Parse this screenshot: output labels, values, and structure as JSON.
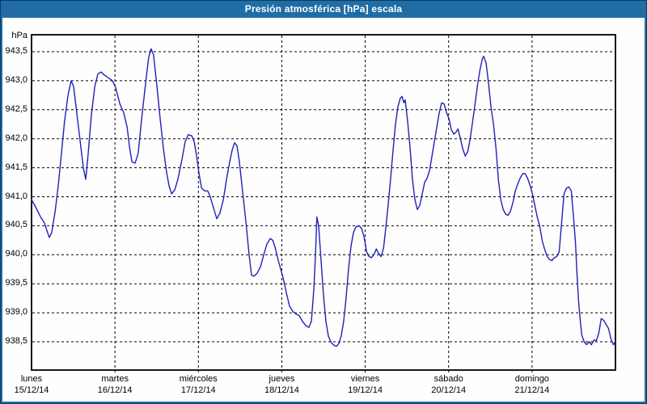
{
  "window": {
    "title": "Presión atmosférica [hPa] escala"
  },
  "colors": {
    "titlebar": "#1f6da4",
    "frame": "#1f6da4",
    "frame_edge": "#0c3b5e",
    "background": "#fdfefd",
    "plot_border": "#000000",
    "grid": "#000000",
    "line": "#2121b9"
  },
  "chart_data": {
    "type": "line",
    "title": "Presión atmosférica [hPa] escala",
    "ylabel": "hPa",
    "unit": "hPa",
    "grid": "dashed",
    "legend": "none",
    "ylim": [
      938.2,
      943.8
    ],
    "y_tick_labels": [
      "943,5",
      "943,0",
      "942,5",
      "942,0",
      "941,5",
      "941,0",
      "940,5",
      "940,0",
      "939,5",
      "939,0",
      "938,5"
    ],
    "y_tick_values": [
      943.5,
      943.0,
      942.5,
      942.0,
      941.5,
      941.0,
      940.5,
      940.0,
      939.5,
      939.0,
      938.5
    ],
    "x_range_hours": [
      0,
      168
    ],
    "x_days": [
      {
        "name": "lunes",
        "date": "15/12/14"
      },
      {
        "name": "martes",
        "date": "16/12/14"
      },
      {
        "name": "miércoles",
        "date": "17/12/14"
      },
      {
        "name": "jueves",
        "date": "18/12/14"
      },
      {
        "name": "viernes",
        "date": "19/12/14"
      },
      {
        "name": "sábado",
        "date": "20/12/14"
      },
      {
        "name": "domingo",
        "date": "21/12/14"
      }
    ],
    "series": [
      {
        "name": "Presión atmosférica",
        "unit": "hPa",
        "color": "#2121b9",
        "points": [
          [
            0,
            940.95
          ],
          [
            1.2,
            940.82
          ],
          [
            2.6,
            940.65
          ],
          [
            3.7,
            940.55
          ],
          [
            4.4,
            940.42
          ],
          [
            5.1,
            940.3
          ],
          [
            5.8,
            940.38
          ],
          [
            6.8,
            940.75
          ],
          [
            7.7,
            941.2
          ],
          [
            8.6,
            941.75
          ],
          [
            9.5,
            942.3
          ],
          [
            10.5,
            942.75
          ],
          [
            11.4,
            943.0
          ],
          [
            12.1,
            942.9
          ],
          [
            13.0,
            942.45
          ],
          [
            14.0,
            941.95
          ],
          [
            14.9,
            941.5
          ],
          [
            15.6,
            941.3
          ],
          [
            16.3,
            941.75
          ],
          [
            17.2,
            942.4
          ],
          [
            18.2,
            942.9
          ],
          [
            19.1,
            943.12
          ],
          [
            20.0,
            943.15
          ],
          [
            20.9,
            943.1
          ],
          [
            22.1,
            943.05
          ],
          [
            23.3,
            943.0
          ],
          [
            24.2,
            942.88
          ],
          [
            25.4,
            942.6
          ],
          [
            26.5,
            942.45
          ],
          [
            27.5,
            942.2
          ],
          [
            28.2,
            941.85
          ],
          [
            28.9,
            941.6
          ],
          [
            29.8,
            941.58
          ],
          [
            30.7,
            941.75
          ],
          [
            31.6,
            942.3
          ],
          [
            32.8,
            942.95
          ],
          [
            33.7,
            943.4
          ],
          [
            34.4,
            943.55
          ],
          [
            35.1,
            943.45
          ],
          [
            36.1,
            942.9
          ],
          [
            37.0,
            942.35
          ],
          [
            37.9,
            941.85
          ],
          [
            38.9,
            941.4
          ],
          [
            39.6,
            941.18
          ],
          [
            40.3,
            941.05
          ],
          [
            41.2,
            941.12
          ],
          [
            42.1,
            941.3
          ],
          [
            43.3,
            941.65
          ],
          [
            44.2,
            941.95
          ],
          [
            45.1,
            942.07
          ],
          [
            46.1,
            942.05
          ],
          [
            46.8,
            941.95
          ],
          [
            47.5,
            941.7
          ],
          [
            48.2,
            941.4
          ],
          [
            48.9,
            941.15
          ],
          [
            49.8,
            941.1
          ],
          [
            50.7,
            941.1
          ],
          [
            51.4,
            941.0
          ],
          [
            52.4,
            940.8
          ],
          [
            53.3,
            940.62
          ],
          [
            54.2,
            940.72
          ],
          [
            55.2,
            940.95
          ],
          [
            56.1,
            941.3
          ],
          [
            57.0,
            941.6
          ],
          [
            57.7,
            941.8
          ],
          [
            58.4,
            941.93
          ],
          [
            59.1,
            941.88
          ],
          [
            59.8,
            941.6
          ],
          [
            60.7,
            941.1
          ],
          [
            61.7,
            940.55
          ],
          [
            62.6,
            940.0
          ],
          [
            63.3,
            939.65
          ],
          [
            64.0,
            939.63
          ],
          [
            64.9,
            939.68
          ],
          [
            65.9,
            939.8
          ],
          [
            66.8,
            940.0
          ],
          [
            67.7,
            940.18
          ],
          [
            68.7,
            940.28
          ],
          [
            69.4,
            940.25
          ],
          [
            70.1,
            940.12
          ],
          [
            71.0,
            939.9
          ],
          [
            71.7,
            939.75
          ],
          [
            72.4,
            939.6
          ],
          [
            73.3,
            939.35
          ],
          [
            74.2,
            939.12
          ],
          [
            75.2,
            939.02
          ],
          [
            76.1,
            938.98
          ],
          [
            77.0,
            938.95
          ],
          [
            78.0,
            938.85
          ],
          [
            78.9,
            938.78
          ],
          [
            79.8,
            938.75
          ],
          [
            80.5,
            938.85
          ],
          [
            81.2,
            939.4
          ],
          [
            81.7,
            940.0
          ],
          [
            82.1,
            940.65
          ],
          [
            82.6,
            940.5
          ],
          [
            83.3,
            939.9
          ],
          [
            84.0,
            939.3
          ],
          [
            84.7,
            938.85
          ],
          [
            85.4,
            938.6
          ],
          [
            86.1,
            938.5
          ],
          [
            86.8,
            938.45
          ],
          [
            87.7,
            938.42
          ],
          [
            88.4,
            938.47
          ],
          [
            89.1,
            938.6
          ],
          [
            89.8,
            938.85
          ],
          [
            90.5,
            939.25
          ],
          [
            91.2,
            939.75
          ],
          [
            91.9,
            940.15
          ],
          [
            92.6,
            940.38
          ],
          [
            93.3,
            940.48
          ],
          [
            94.3,
            940.5
          ],
          [
            95.0,
            940.45
          ],
          [
            95.7,
            940.3
          ],
          [
            96.4,
            940.05
          ],
          [
            97.1,
            939.97
          ],
          [
            97.8,
            939.95
          ],
          [
            98.5,
            940.0
          ],
          [
            99.2,
            940.1
          ],
          [
            99.9,
            940.02
          ],
          [
            100.6,
            939.97
          ],
          [
            101.3,
            940.12
          ],
          [
            101.9,
            940.45
          ],
          [
            102.6,
            940.85
          ],
          [
            103.3,
            941.3
          ],
          [
            104.0,
            941.8
          ],
          [
            104.7,
            942.25
          ],
          [
            105.4,
            942.55
          ],
          [
            106.1,
            942.7
          ],
          [
            106.6,
            942.73
          ],
          [
            107.1,
            942.62
          ],
          [
            107.5,
            942.67
          ],
          [
            108.2,
            942.3
          ],
          [
            108.9,
            941.85
          ],
          [
            109.6,
            941.3
          ],
          [
            110.3,
            940.95
          ],
          [
            111.0,
            940.78
          ],
          [
            111.7,
            940.85
          ],
          [
            112.4,
            941.05
          ],
          [
            113.1,
            941.25
          ],
          [
            113.8,
            941.32
          ],
          [
            114.5,
            941.45
          ],
          [
            115.2,
            941.7
          ],
          [
            115.9,
            941.95
          ],
          [
            116.6,
            942.2
          ],
          [
            117.3,
            942.45
          ],
          [
            118.0,
            942.62
          ],
          [
            118.7,
            942.6
          ],
          [
            119.4,
            942.45
          ],
          [
            120.1,
            942.35
          ],
          [
            120.8,
            942.15
          ],
          [
            121.5,
            942.08
          ],
          [
            122.2,
            942.12
          ],
          [
            122.7,
            942.17
          ],
          [
            123.4,
            942.0
          ],
          [
            124.1,
            941.82
          ],
          [
            124.8,
            941.7
          ],
          [
            125.5,
            941.78
          ],
          [
            126.2,
            942.0
          ],
          [
            126.9,
            942.3
          ],
          [
            127.6,
            942.6
          ],
          [
            128.3,
            942.92
          ],
          [
            129.0,
            943.18
          ],
          [
            129.7,
            943.38
          ],
          [
            130.1,
            943.42
          ],
          [
            130.8,
            943.3
          ],
          [
            131.5,
            942.95
          ],
          [
            132.2,
            942.55
          ],
          [
            132.9,
            942.25
          ],
          [
            133.6,
            941.85
          ],
          [
            134.3,
            941.3
          ],
          [
            135.0,
            940.95
          ],
          [
            135.7,
            940.78
          ],
          [
            136.4,
            940.7
          ],
          [
            137.1,
            940.68
          ],
          [
            137.8,
            940.75
          ],
          [
            138.5,
            940.9
          ],
          [
            139.2,
            941.1
          ],
          [
            139.9,
            941.22
          ],
          [
            140.6,
            941.32
          ],
          [
            141.3,
            941.4
          ],
          [
            142.0,
            941.4
          ],
          [
            142.7,
            941.32
          ],
          [
            143.4,
            941.2
          ],
          [
            144.1,
            941.05
          ],
          [
            144.8,
            940.85
          ],
          [
            145.5,
            940.65
          ],
          [
            146.2,
            940.5
          ],
          [
            146.9,
            940.25
          ],
          [
            147.6,
            940.1
          ],
          [
            148.3,
            939.98
          ],
          [
            149.0,
            939.92
          ],
          [
            149.7,
            939.9
          ],
          [
            150.4,
            939.95
          ],
          [
            151.1,
            939.97
          ],
          [
            151.8,
            940.05
          ],
          [
            152.5,
            940.55
          ],
          [
            153.2,
            941.05
          ],
          [
            153.9,
            941.15
          ],
          [
            154.6,
            941.17
          ],
          [
            155.3,
            941.1
          ],
          [
            156.0,
            940.6
          ],
          [
            156.5,
            940.2
          ],
          [
            156.9,
            939.7
          ],
          [
            157.4,
            939.2
          ],
          [
            157.9,
            938.85
          ],
          [
            158.3,
            938.62
          ],
          [
            159.0,
            938.5
          ],
          [
            159.7,
            938.45
          ],
          [
            160.4,
            938.5
          ],
          [
            161.1,
            938.45
          ],
          [
            161.8,
            938.53
          ],
          [
            162.5,
            938.52
          ],
          [
            163.2,
            938.65
          ],
          [
            163.9,
            938.9
          ],
          [
            164.6,
            938.87
          ],
          [
            165.3,
            938.8
          ],
          [
            166.0,
            938.73
          ],
          [
            166.7,
            938.55
          ],
          [
            167.4,
            938.45
          ],
          [
            167.9,
            938.5
          ]
        ]
      }
    ]
  }
}
